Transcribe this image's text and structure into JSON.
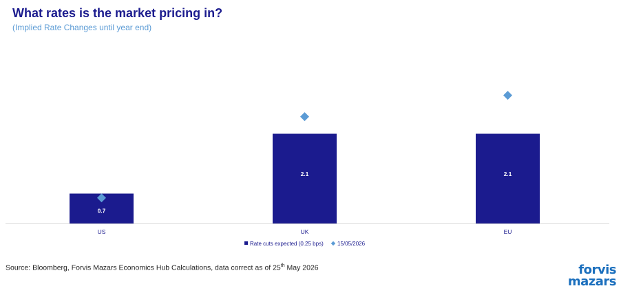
{
  "header": {
    "title": "What rates is the market pricing in?",
    "subtitle": "(Implied Rate Changes until year end)"
  },
  "footer": {
    "source_prefix": "Source: Bloomberg, Forvis Mazars Economics Hub Calculations, data correct as of 25",
    "source_sup": "th",
    "source_suffix": " May 2026",
    "logo_line1": "forvis",
    "logo_line2": "mazars"
  },
  "colors": {
    "bar": "#1b1b8e",
    "marker": "#5b9bd5",
    "title": "#1b1b8e",
    "subtitle": "#5b9bd5",
    "logo": "#1b6fbd"
  },
  "chart_data": {
    "type": "bar",
    "categories": [
      "US",
      "UK",
      "EU"
    ],
    "series": [
      {
        "name": "Rate cuts expected (0.25 bps)",
        "type": "bar",
        "values": [
          0.7,
          2.1,
          2.1
        ],
        "labels": [
          "0.7",
          "2.1",
          "2.1"
        ]
      },
      {
        "name": "15/05/2026",
        "type": "marker",
        "values": [
          0.6,
          2.5,
          3.0
        ]
      }
    ],
    "ylim": [
      0,
      4.2
    ],
    "legend": "bottom",
    "grid": false
  }
}
